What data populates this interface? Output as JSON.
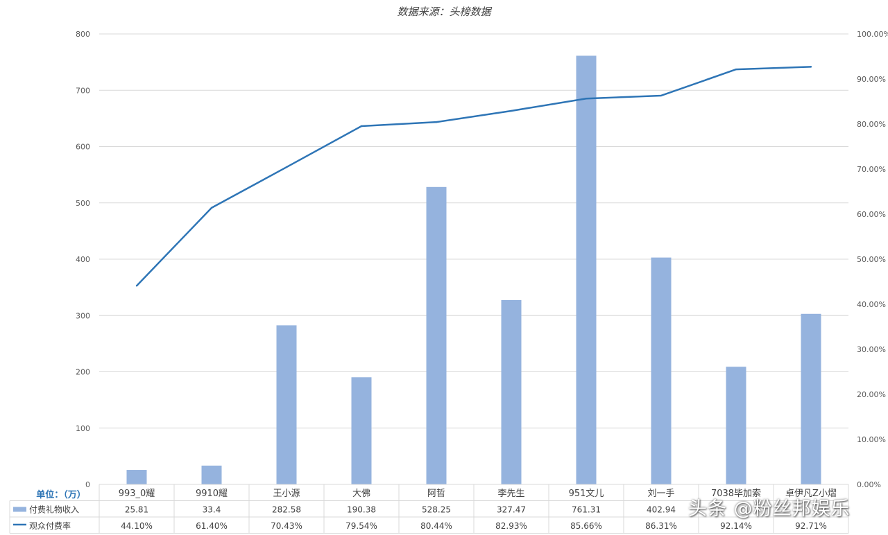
{
  "source_note": "数据来源：头榜数据",
  "unit_label": "单位：（万）",
  "watermark": "头条 @粉丝邦娱乐",
  "colors": {
    "bar": "#95B3DE",
    "line": "#2E75B6",
    "grid": "#D9D9D9",
    "unit": "#2E75B6"
  },
  "chart_data": {
    "type": "bar",
    "categories": [
      "993_0耀",
      "9910耀",
      "王小源",
      "大佛",
      "阿哲",
      "李先生",
      "951文儿",
      "刘一手",
      "7038毕加索",
      "卓伊凡Z小熠"
    ],
    "series": [
      {
        "name": "付费礼物收入",
        "type": "bar",
        "axis": "left",
        "values": [
          25.81,
          33.4,
          282.58,
          190.38,
          528.25,
          327.47,
          761.31,
          402.94,
          209,
          303
        ],
        "labels": [
          "25.81",
          "33.4",
          "282.58",
          "190.38",
          "528.25",
          "327.47",
          "761.31",
          "402.94",
          "",
          ""
        ]
      },
      {
        "name": "观众付费率",
        "type": "line",
        "axis": "right",
        "values": [
          44.1,
          61.4,
          70.43,
          79.54,
          80.44,
          82.93,
          85.66,
          86.31,
          92.14,
          92.71
        ],
        "labels": [
          "44.10%",
          "61.40%",
          "70.43%",
          "79.54%",
          "80.44%",
          "82.93%",
          "85.66%",
          "86.31%",
          "92.14%",
          "92.71%"
        ]
      }
    ],
    "y_left": {
      "ylim": [
        0,
        800
      ],
      "ticks": [
        "0",
        "100",
        "200",
        "300",
        "400",
        "500",
        "600",
        "700",
        "800"
      ]
    },
    "y_right": {
      "ylim": [
        0,
        100
      ],
      "ticks": [
        "0.00%",
        "10.00%",
        "20.00%",
        "30.00%",
        "40.00%",
        "50.00%",
        "60.00%",
        "70.00%",
        "80.00%",
        "90.00%",
        "100.00%"
      ]
    },
    "grid": true,
    "legend": "data-table"
  }
}
